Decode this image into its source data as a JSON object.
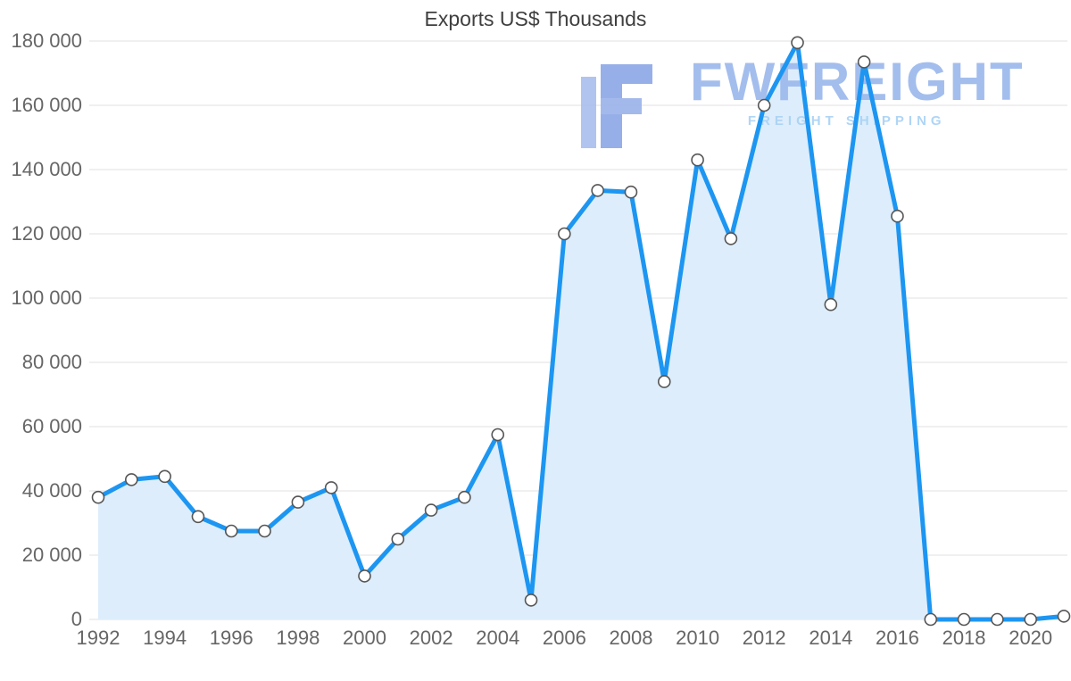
{
  "page": {
    "background": "#ffffff"
  },
  "chart_title": "Exports US$ Thousands",
  "watermark": {
    "brand": "FWFREIGHT",
    "tagline": "FREIGHT SHIPPING",
    "logo_color_light": "#aabfee",
    "logo_color_main": "#8fa9e8",
    "logo_color_mid": "#9db4ea"
  },
  "chart_data": {
    "type": "area",
    "title": "Exports US$ Thousands",
    "x": [
      1992,
      1993,
      1994,
      1995,
      1996,
      1997,
      1998,
      1999,
      2000,
      2001,
      2002,
      2003,
      2004,
      2005,
      2006,
      2007,
      2008,
      2009,
      2010,
      2011,
      2012,
      2013,
      2014,
      2015,
      2016,
      2017,
      2018,
      2019,
      2020,
      2021
    ],
    "values": [
      38000,
      43500,
      44500,
      32000,
      27500,
      27500,
      36500,
      41000,
      13500,
      25000,
      34000,
      38000,
      57500,
      6000,
      120000,
      133500,
      133000,
      74000,
      143000,
      118500,
      160000,
      179500,
      98000,
      173500,
      125500,
      0,
      0,
      0,
      0,
      1000
    ],
    "xlabel": "",
    "ylabel": "",
    "ylim": [
      0,
      180000
    ],
    "ytick_step": 20000,
    "ytick_labels": [
      "0",
      "20 000",
      "40 000",
      "60 000",
      "80 000",
      "100 000",
      "120 000",
      "140 000",
      "160 000",
      "180 000"
    ],
    "xtick_labels": [
      "1992",
      "1994",
      "1996",
      "1998",
      "2000",
      "2002",
      "2004",
      "2006",
      "2008",
      "2010",
      "2012",
      "2014",
      "2016",
      "2018",
      "2020"
    ],
    "xtick_every": 2,
    "grid": true,
    "legend": "none",
    "colors": {
      "line": "#1d96f2",
      "fill": "#ddedfb",
      "marker_fill": "#ffffff",
      "marker_stroke": "#555555",
      "grid": "#e2e2e2",
      "axis_text": "#666666",
      "title_text": "#3f3f3f"
    }
  }
}
